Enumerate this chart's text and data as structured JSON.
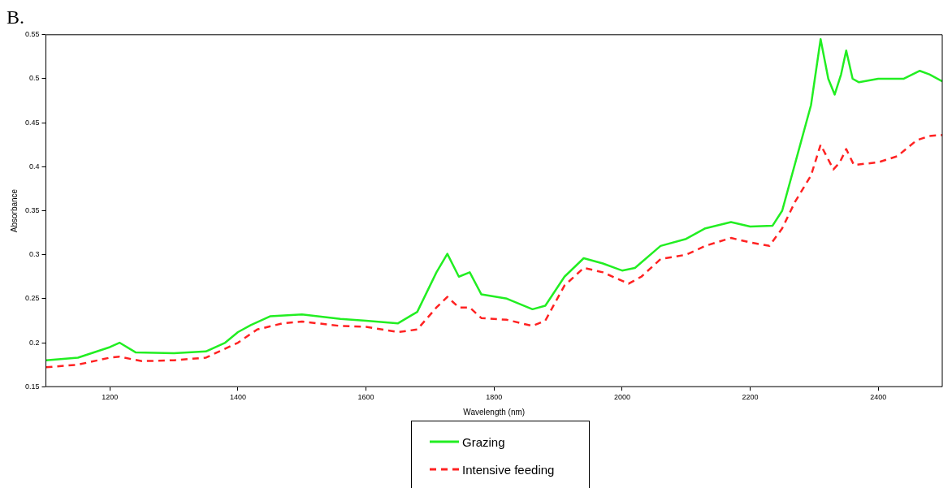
{
  "chart_data": {
    "type": "line",
    "title": "B.",
    "xlabel": "Wavelength (nm)",
    "ylabel": "Absorbance",
    "xlim": [
      1100,
      2500
    ],
    "xticks": [
      1200,
      1400,
      1600,
      1800,
      2000,
      2200,
      2400
    ],
    "ylim": [
      0.15,
      0.55
    ],
    "yticks": [
      0.15,
      0.2,
      0.25,
      0.3,
      0.35,
      0.4,
      0.45,
      0.5,
      0.55
    ],
    "grid": false,
    "legend": "bottom",
    "marker": "none",
    "series": [
      {
        "name": "Grazing",
        "color": "#22ee22",
        "line_style": "solid",
        "x": [
          1100,
          1150,
          1200,
          1215,
          1240,
          1300,
          1350,
          1380,
          1400,
          1420,
          1450,
          1500,
          1560,
          1600,
          1650,
          1680,
          1710,
          1727,
          1745,
          1762,
          1780,
          1820,
          1860,
          1880,
          1910,
          1940,
          1970,
          2000,
          2020,
          2060,
          2100,
          2130,
          2170,
          2200,
          2235,
          2250,
          2280,
          2295,
          2310,
          2322,
          2332,
          2342,
          2350,
          2360,
          2370,
          2400,
          2440,
          2465,
          2480,
          2500
        ],
        "values": [
          0.18,
          0.183,
          0.195,
          0.2,
          0.189,
          0.188,
          0.19,
          0.2,
          0.212,
          0.22,
          0.23,
          0.232,
          0.227,
          0.225,
          0.222,
          0.235,
          0.28,
          0.301,
          0.275,
          0.28,
          0.255,
          0.25,
          0.238,
          0.242,
          0.275,
          0.296,
          0.29,
          0.282,
          0.285,
          0.31,
          0.318,
          0.33,
          0.337,
          0.332,
          0.333,
          0.35,
          0.43,
          0.47,
          0.545,
          0.5,
          0.482,
          0.505,
          0.532,
          0.5,
          0.496,
          0.5,
          0.5,
          0.509,
          0.505,
          0.497
        ]
      },
      {
        "name": "Intensive feeding",
        "color": "#ff2222",
        "line_style": "dashed",
        "x": [
          1100,
          1150,
          1200,
          1215,
          1250,
          1300,
          1350,
          1400,
          1430,
          1470,
          1500,
          1560,
          1600,
          1650,
          1680,
          1710,
          1727,
          1745,
          1762,
          1780,
          1820,
          1860,
          1880,
          1910,
          1940,
          1970,
          2010,
          2030,
          2060,
          2100,
          2130,
          2170,
          2200,
          2230,
          2250,
          2270,
          2295,
          2310,
          2330,
          2340,
          2350,
          2362,
          2400,
          2430,
          2460,
          2480,
          2500
        ],
        "values": [
          0.172,
          0.175,
          0.183,
          0.184,
          0.179,
          0.18,
          0.183,
          0.2,
          0.215,
          0.222,
          0.224,
          0.219,
          0.218,
          0.212,
          0.215,
          0.24,
          0.252,
          0.24,
          0.24,
          0.228,
          0.226,
          0.219,
          0.225,
          0.265,
          0.285,
          0.28,
          0.267,
          0.275,
          0.295,
          0.3,
          0.31,
          0.319,
          0.314,
          0.31,
          0.33,
          0.36,
          0.39,
          0.425,
          0.397,
          0.405,
          0.42,
          0.402,
          0.405,
          0.412,
          0.43,
          0.435,
          0.436
        ]
      }
    ]
  }
}
